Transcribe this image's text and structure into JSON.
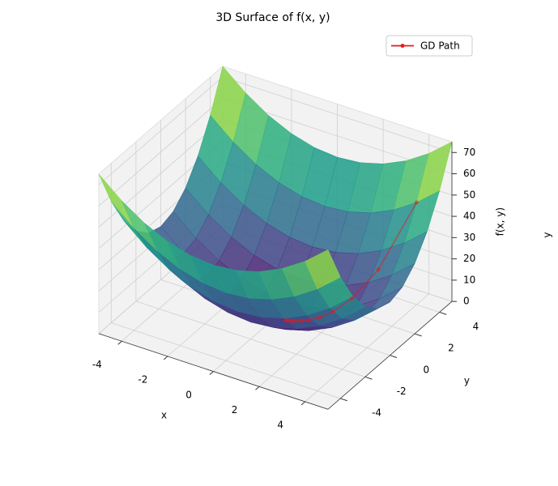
{
  "chart_data": {
    "type": "surface3d",
    "title": "3D Surface of f(x, y)",
    "x_label": "x",
    "y_label": "y",
    "z_label": "f(x, y)",
    "side_label": "y",
    "colormap": "viridis",
    "x": [
      -5,
      -4,
      -3,
      -2,
      -1,
      0,
      1,
      2,
      3,
      4,
      5
    ],
    "y": [
      -5,
      -4,
      -3,
      -2,
      -1,
      0,
      1,
      2,
      3,
      4,
      5
    ],
    "z": [
      [
        75,
        66,
        59,
        54,
        51,
        50,
        51,
        54,
        59,
        66,
        75
      ],
      [
        57,
        48,
        41,
        36,
        33,
        32,
        33,
        36,
        41,
        48,
        57
      ],
      [
        43,
        34,
        27,
        22,
        19,
        18,
        19,
        22,
        27,
        34,
        43
      ],
      [
        33,
        24,
        17,
        12,
        9,
        8,
        9,
        12,
        17,
        24,
        33
      ],
      [
        27,
        18,
        11,
        6,
        3,
        2,
        3,
        6,
        11,
        18,
        27
      ],
      [
        25,
        16,
        9,
        4,
        1,
        0,
        1,
        4,
        9,
        16,
        25
      ],
      [
        27,
        18,
        11,
        6,
        3,
        2,
        3,
        6,
        11,
        18,
        27
      ],
      [
        33,
        24,
        17,
        12,
        9,
        8,
        9,
        12,
        17,
        24,
        33
      ],
      [
        43,
        34,
        27,
        22,
        19,
        18,
        19,
        22,
        27,
        34,
        43
      ],
      [
        57,
        48,
        41,
        36,
        33,
        32,
        33,
        36,
        41,
        48,
        57
      ],
      [
        75,
        66,
        59,
        54,
        51,
        50,
        51,
        54,
        59,
        66,
        75
      ]
    ],
    "series": [
      {
        "name": "GD Path",
        "color": "#e41a1c",
        "x": [
          4,
          3.2,
          2.56,
          2.05,
          1.64,
          1.31,
          1.05,
          0.84,
          0.67,
          0.54,
          0.43
        ],
        "y": [
          4,
          2.4,
          1.44,
          0.86,
          0.52,
          0.31,
          0.19,
          0.11,
          0.07,
          0.04,
          0.02
        ],
        "values": [
          48,
          21.76,
          10.69,
          5.68,
          3.23,
          1.91,
          1.17,
          0.73,
          0.46,
          0.29,
          0.19
        ]
      }
    ],
    "xlim": [
      -5,
      5
    ],
    "ylim": [
      -5,
      5
    ],
    "zlim": [
      0,
      75
    ],
    "xticks": [
      -4,
      -2,
      0,
      2,
      4
    ],
    "yticks": [
      -4,
      -2,
      0,
      2,
      4
    ],
    "zticks": [
      0,
      10,
      20,
      30,
      40,
      50,
      60,
      70
    ],
    "grid": true,
    "legend_position": "upper right"
  }
}
